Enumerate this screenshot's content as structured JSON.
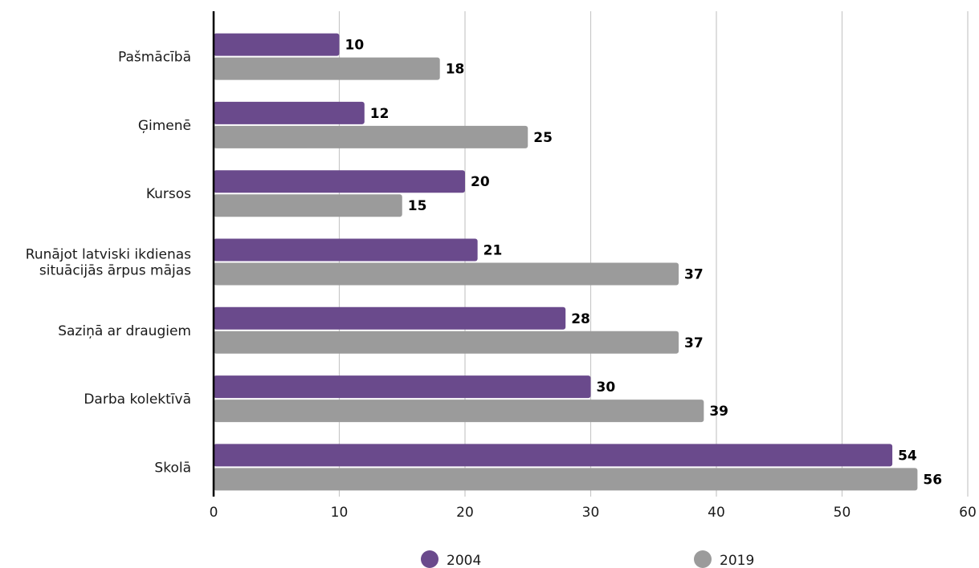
{
  "chart_data": {
    "type": "bar",
    "orientation": "horizontal",
    "categories": [
      [
        "Pašmācībā"
      ],
      [
        "Ģimenē"
      ],
      [
        "Kursos"
      ],
      [
        "Runājot latviski ikdienas",
        "situācijās ārpus mājas"
      ],
      [
        "Saziņā ar draugiem"
      ],
      [
        "Darba kolektīvā"
      ],
      [
        "Skolā"
      ]
    ],
    "series": [
      {
        "name": "2004",
        "color": "#6a4a8c",
        "values": [
          10,
          12,
          20,
          21,
          28,
          30,
          54
        ]
      },
      {
        "name": "2019",
        "color": "#9b9b9b",
        "values": [
          18,
          25,
          15,
          37,
          37,
          39,
          56
        ]
      }
    ],
    "xlim": [
      0,
      60
    ],
    "xticks": [
      0,
      10,
      20,
      30,
      40,
      50,
      60
    ],
    "grid": true,
    "legend_position": "bottom",
    "title": "",
    "xlabel": "",
    "ylabel": ""
  }
}
